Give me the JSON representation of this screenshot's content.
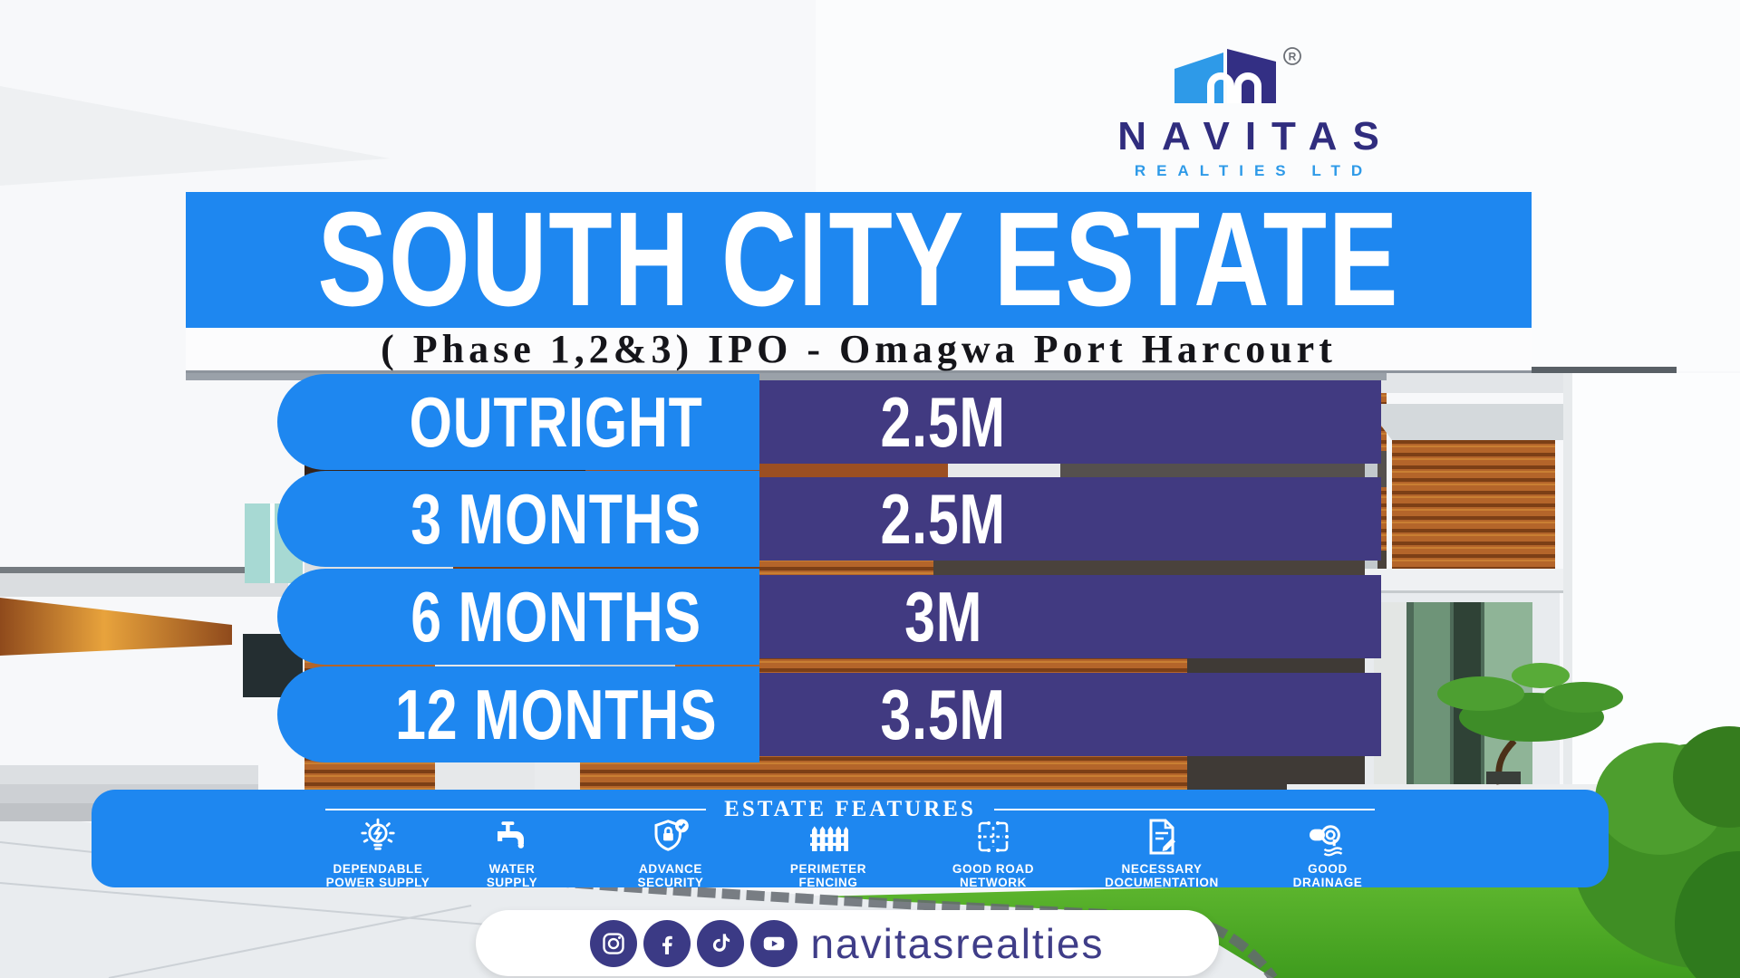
{
  "brand": {
    "name": "NAVITAS",
    "subtitle": "REALTIES LTD",
    "registered_mark": "R"
  },
  "header": {
    "title": "SOUTH CITY ESTATE",
    "subtitle": "( Phase 1,2&3) IPO - Omagwa Port Harcourt"
  },
  "pricing": {
    "rows": [
      {
        "plan": "OUTRIGHT",
        "price": "2.5M"
      },
      {
        "plan": "3 MONTHS",
        "price": "2.5M"
      },
      {
        "plan": "6 MONTHS",
        "price": "3M"
      },
      {
        "plan": "12 MONTHS",
        "price": "3.5M"
      }
    ]
  },
  "features": {
    "title": "ESTATE FEATURES",
    "items": [
      {
        "icon": "power-supply-icon",
        "label": "DEPENDABLE\nPOWER SUPPLY"
      },
      {
        "icon": "water-supply-icon",
        "label": "WATER\nSUPPLY"
      },
      {
        "icon": "security-icon",
        "label": "ADVANCE\nSECURITY"
      },
      {
        "icon": "fence-icon",
        "label": "PERIMETER\nFENCING"
      },
      {
        "icon": "road-network-icon",
        "label": "GOOD ROAD\nNETWORK"
      },
      {
        "icon": "documentation-icon",
        "label": "NECESSARY\nDOCUMENTATION"
      },
      {
        "icon": "drainage-icon",
        "label": "GOOD\nDRAINAGE"
      }
    ]
  },
  "social": {
    "handle": "navitasrealties",
    "icons": [
      "instagram-icon",
      "facebook-icon",
      "tiktok-icon",
      "youtube-icon"
    ]
  },
  "colors": {
    "accent_blue": "#1e87f0",
    "panel_purple": "#413a81",
    "brand_indigo": "#302d7e",
    "brand_lightblue": "#2e9ae8",
    "social_indigo": "#3b3a85"
  }
}
